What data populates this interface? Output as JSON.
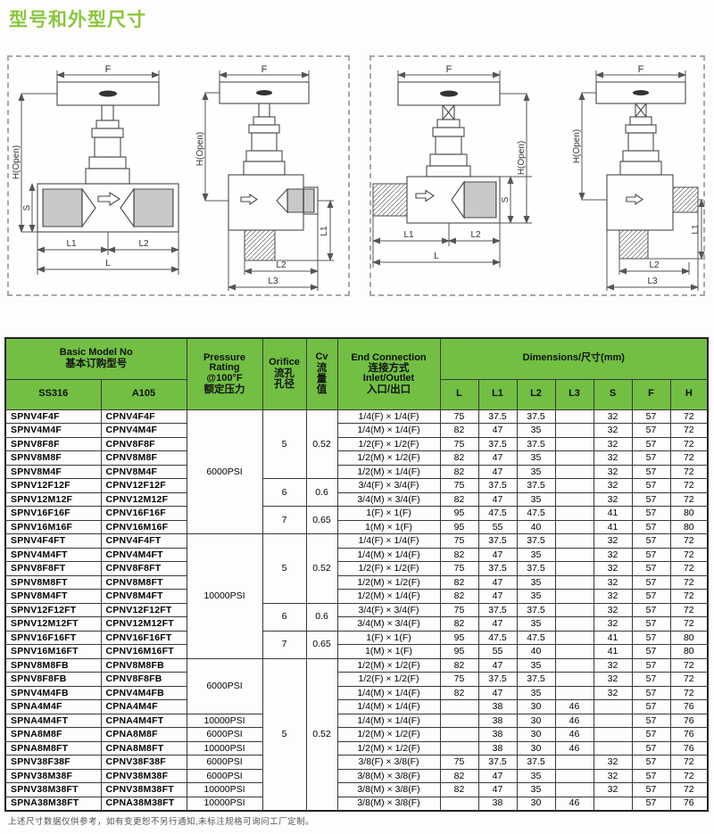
{
  "title": "型号和外型尺寸",
  "note": "上述尺寸数据仅供参考，如有变更恕不另行通知,未标注规格可询问工厂定制。",
  "drawings": {
    "labels": {
      "f": "F",
      "h_open": "H(Open)",
      "s": "S",
      "l": "L",
      "l1": "L1",
      "l2": "L2",
      "l3": "L3"
    }
  },
  "colors": {
    "header_green": "#72bf44",
    "title_green": "#8cc63e"
  },
  "table": {
    "header": {
      "basic_model_en": "Basic Model No",
      "basic_model_zh": "基本订购型号",
      "ss316": "SS316",
      "a105": "A105",
      "pressure": [
        "Pressure",
        "Rating",
        "@100°F",
        "额定压力"
      ],
      "orifice": [
        "Orifice",
        "流孔",
        "孔径"
      ],
      "cv": [
        "Cv",
        "流",
        "量",
        "值"
      ],
      "end_connection": [
        "End Connection",
        "连接方式",
        "Inlet/Outlet",
        "入口/出口"
      ],
      "dimensions": "Dimensions/尺寸(mm)",
      "dim_cols": [
        "L",
        "L1",
        "L2",
        "L3",
        "S",
        "F",
        "H"
      ]
    },
    "rows": [
      {
        "ss316": "SPNV4F4F",
        "a105": "CPNV4F4F",
        "pressure": {
          "v": "6000PSI",
          "span": 9
        },
        "orifice": {
          "v": "5",
          "span": 5
        },
        "cv": {
          "v": "0.52",
          "span": 5
        },
        "end": "1/4(F) × 1/4(F)",
        "dims": [
          "75",
          "37.5",
          "37.5",
          "",
          "32",
          "57",
          "72"
        ]
      },
      {
        "ss316": "SPNV4M4F",
        "a105": "CPNV4M4F",
        "end": "1/4(M) × 1/4(F)",
        "dims": [
          "82",
          "47",
          "35",
          "",
          "32",
          "57",
          "72"
        ]
      },
      {
        "ss316": "SPNV8F8F",
        "a105": "CPNV8F8F",
        "end": "1/2(F) × 1/2(F)",
        "dims": [
          "75",
          "37.5",
          "37.5",
          "",
          "32",
          "57",
          "72"
        ]
      },
      {
        "ss316": "SPNV8M8F",
        "a105": "CPNV8M8F",
        "end": "1/2(M) × 1/2(F)",
        "dims": [
          "82",
          "47",
          "35",
          "",
          "32",
          "57",
          "72"
        ]
      },
      {
        "ss316": "SPNV8M4F",
        "a105": "CPNV8M4F",
        "end": "1/2(M) × 1/4(F)",
        "dims": [
          "82",
          "47",
          "35",
          "",
          "32",
          "57",
          "72"
        ]
      },
      {
        "ss316": "SPNV12F12F",
        "a105": "CPNV12F12F",
        "orifice": {
          "v": "6",
          "span": 2
        },
        "cv": {
          "v": "0.6",
          "span": 2
        },
        "end": "3/4(F) × 3/4(F)",
        "dims": [
          "75",
          "37.5",
          "37.5",
          "",
          "32",
          "57",
          "72"
        ]
      },
      {
        "ss316": "SPNV12M12F",
        "a105": "CPNV12M12F",
        "end": "3/4(M) × 3/4(F)",
        "dims": [
          "82",
          "47",
          "35",
          "",
          "32",
          "57",
          "72"
        ]
      },
      {
        "ss316": "SPNV16F16F",
        "a105": "CPNV16F16F",
        "orifice": {
          "v": "7",
          "span": 2
        },
        "cv": {
          "v": "0.65",
          "span": 2
        },
        "end": "1(F) × 1(F)",
        "dims": [
          "95",
          "47.5",
          "47.5",
          "",
          "41",
          "57",
          "80"
        ]
      },
      {
        "ss316": "SPNV16M16F",
        "a105": "CPNV16M16F",
        "end": "1(M) × 1(F)",
        "dims": [
          "95",
          "55",
          "40",
          "",
          "41",
          "57",
          "80"
        ]
      },
      {
        "ss316": "SPNV4F4FT",
        "a105": "CPNV4F4FT",
        "pressure": {
          "v": "10000PSI",
          "span": 9
        },
        "orifice": {
          "v": "5",
          "span": 5
        },
        "cv": {
          "v": "0.52",
          "span": 5
        },
        "end": "1/4(F) × 1/4(F)",
        "dims": [
          "75",
          "37.5",
          "37.5",
          "",
          "32",
          "57",
          "72"
        ]
      },
      {
        "ss316": "SPNV4M4FT",
        "a105": "CPNV4M4FT",
        "end": "1/4(M) × 1/4(F)",
        "dims": [
          "82",
          "47",
          "35",
          "",
          "32",
          "57",
          "72"
        ]
      },
      {
        "ss316": "SPNV8F8FT",
        "a105": "CPNV8F8FT",
        "end": "1/2(F) × 1/2(F)",
        "dims": [
          "75",
          "37.5",
          "37.5",
          "",
          "32",
          "57",
          "72"
        ]
      },
      {
        "ss316": "SPNV8M8FT",
        "a105": "CPNV8M8FT",
        "end": "1/2(M) × 1/2(F)",
        "dims": [
          "82",
          "47",
          "35",
          "",
          "32",
          "57",
          "72"
        ]
      },
      {
        "ss316": "SPNV8M4FT",
        "a105": "CPNV8M4FT",
        "end": "1/2(M) × 1/4(F)",
        "dims": [
          "82",
          "47",
          "35",
          "",
          "32",
          "57",
          "72"
        ]
      },
      {
        "ss316": "SPNV12F12FT",
        "a105": "CPNV12F12FT",
        "orifice": {
          "v": "6",
          "span": 2
        },
        "cv": {
          "v": "0.6",
          "span": 2
        },
        "end": "3/4(F) × 3/4(F)",
        "dims": [
          "75",
          "37.5",
          "37.5",
          "",
          "32",
          "57",
          "72"
        ]
      },
      {
        "ss316": "SPNV12M12FT",
        "a105": "CPNV12M12FT",
        "end": "3/4(M) × 3/4(F)",
        "dims": [
          "82",
          "47",
          "35",
          "",
          "32",
          "57",
          "72"
        ]
      },
      {
        "ss316": "SPNV16F16FT",
        "a105": "CPNV16F16FT",
        "orifice": {
          "v": "7",
          "span": 2
        },
        "cv": {
          "v": "0.65",
          "span": 2
        },
        "end": "1(F) × 1(F)",
        "dims": [
          "95",
          "47.5",
          "47.5",
          "",
          "41",
          "57",
          "80"
        ]
      },
      {
        "ss316": "SPNV16M16FT",
        "a105": "CPNV16M16FT",
        "end": "1(M) × 1(F)",
        "dims": [
          "95",
          "55",
          "40",
          "",
          "41",
          "57",
          "80"
        ]
      },
      {
        "ss316": "SPNV8M8FB",
        "a105": "CPNV8M8FB",
        "pressure": {
          "v": "6000PSI",
          "span": 4
        },
        "orifice": {
          "v": "5",
          "span": 11
        },
        "cv": {
          "v": "0.52",
          "span": 11
        },
        "end": "1/2(M) × 1/2(F)",
        "dims": [
          "82",
          "47",
          "35",
          "",
          "32",
          "57",
          "72"
        ]
      },
      {
        "ss316": "SPNV8F8FB",
        "a105": "CPNV8F8FB",
        "end": "1/2(F) × 1/2(F)",
        "dims": [
          "75",
          "37.5",
          "37.5",
          "",
          "32",
          "57",
          "72"
        ]
      },
      {
        "ss316": "SPNV4M4FB",
        "a105": "CPNV4M4FB",
        "end": "1/4(M) × 1/4(F)",
        "dims": [
          "82",
          "47",
          "35",
          "",
          "32",
          "57",
          "72"
        ]
      },
      {
        "ss316": "SPNA4M4F",
        "a105": "CPNA4M4F",
        "end": "1/4(M) × 1/4(F)",
        "dims": [
          "",
          "38",
          "30",
          "46",
          "",
          "57",
          "76"
        ]
      },
      {
        "ss316": "SPNA4M4FT",
        "a105": "CPNA4M4FT",
        "pressure": {
          "v": "10000PSI",
          "span": 1
        },
        "end": "1/4(M) × 1/4(F)",
        "dims": [
          "",
          "38",
          "30",
          "46",
          "",
          "57",
          "76"
        ]
      },
      {
        "ss316": "SPNA8M8F",
        "a105": "CPNA8M8F",
        "pressure": {
          "v": "6000PSI",
          "span": 1
        },
        "end": "1/2(M) × 1/2(F)",
        "dims": [
          "",
          "38",
          "30",
          "46",
          "",
          "57",
          "76"
        ]
      },
      {
        "ss316": "SPNA8M8FT",
        "a105": "CPNA8M8FT",
        "pressure": {
          "v": "10000PSI",
          "span": 1
        },
        "end": "1/2(M) × 1/2(F)",
        "dims": [
          "",
          "38",
          "30",
          "46",
          "",
          "57",
          "76"
        ]
      },
      {
        "ss316": "SPNV38F38F",
        "a105": "CPNV38F38F",
        "pressure": {
          "v": "6000PSI",
          "span": 1
        },
        "end": "3/8(F) × 3/8(F)",
        "dims": [
          "75",
          "37.5",
          "37.5",
          "",
          "32",
          "57",
          "72"
        ]
      },
      {
        "ss316": "SPNV38M38F",
        "a105": "CPNV38M38F",
        "pressure": {
          "v": "6000PSI",
          "span": 1
        },
        "end": "3/8(M) × 3/8(F)",
        "dims": [
          "82",
          "47",
          "35",
          "",
          "32",
          "57",
          "72"
        ]
      },
      {
        "ss316": "SPNV38M38FT",
        "a105": "CPNV38M38FT",
        "pressure": {
          "v": "10000PSI",
          "span": 1
        },
        "end": "3/8(M) × 3/8(F)",
        "dims": [
          "82",
          "47",
          "35",
          "",
          "32",
          "57",
          "72"
        ]
      },
      {
        "ss316": "SPNA38M38FT",
        "a105": "CPNA38M38FT",
        "pressure": {
          "v": "10000PSI",
          "span": 1
        },
        "end": "3/8(M) × 3/8(F)",
        "dims": [
          "",
          "38",
          "30",
          "46",
          "",
          "57",
          "76"
        ]
      }
    ]
  }
}
